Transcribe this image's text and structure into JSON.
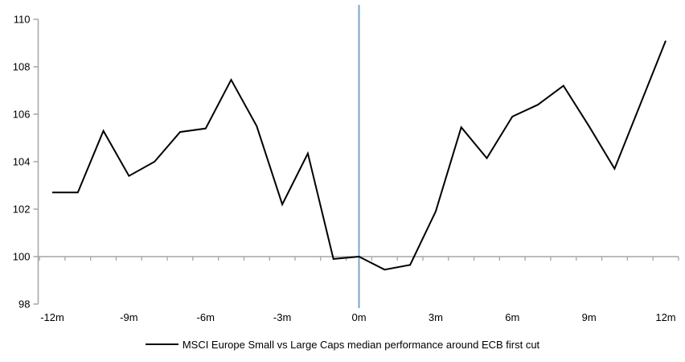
{
  "chart_data": {
    "type": "line",
    "x_months": [
      -12,
      -11,
      -10,
      -9,
      -8,
      -7,
      -6,
      -5,
      -4,
      -3,
      -2,
      -1,
      0,
      1,
      2,
      3,
      4,
      5,
      6,
      7,
      8,
      9,
      10,
      11,
      12
    ],
    "series": [
      {
        "name": "MSCI Europe Small vs Large Caps median performance around ECB first cut",
        "color": "#000000",
        "values": [
          102.7,
          102.7,
          105.3,
          103.4,
          104.0,
          105.25,
          105.4,
          107.45,
          105.5,
          102.2,
          104.35,
          99.9,
          100.0,
          99.45,
          99.65,
          101.9,
          105.45,
          104.15,
          105.9,
          106.4,
          107.2,
          105.5,
          103.7,
          106.4,
          109.1
        ]
      }
    ],
    "ylim": [
      98,
      110
    ],
    "yticks": [
      98,
      100,
      102,
      104,
      106,
      108,
      110
    ],
    "baseline_value": 100,
    "xtick_months": [
      -12,
      -9,
      -6,
      -3,
      0,
      3,
      6,
      9,
      12
    ],
    "xtick_labels": [
      "-12m",
      "-9m",
      "-6m",
      "-3m",
      "0m",
      "3m",
      "6m",
      "9m",
      "12m"
    ],
    "event_line": {
      "month": 0,
      "color": "#7CA5C9"
    },
    "axis_color": "#A6A6A6",
    "text_color": "#000000",
    "grid": false,
    "legend_position": "bottom-center"
  },
  "legend": {
    "label": "MSCI Europe Small vs Large Caps median performance around ECB first cut"
  }
}
